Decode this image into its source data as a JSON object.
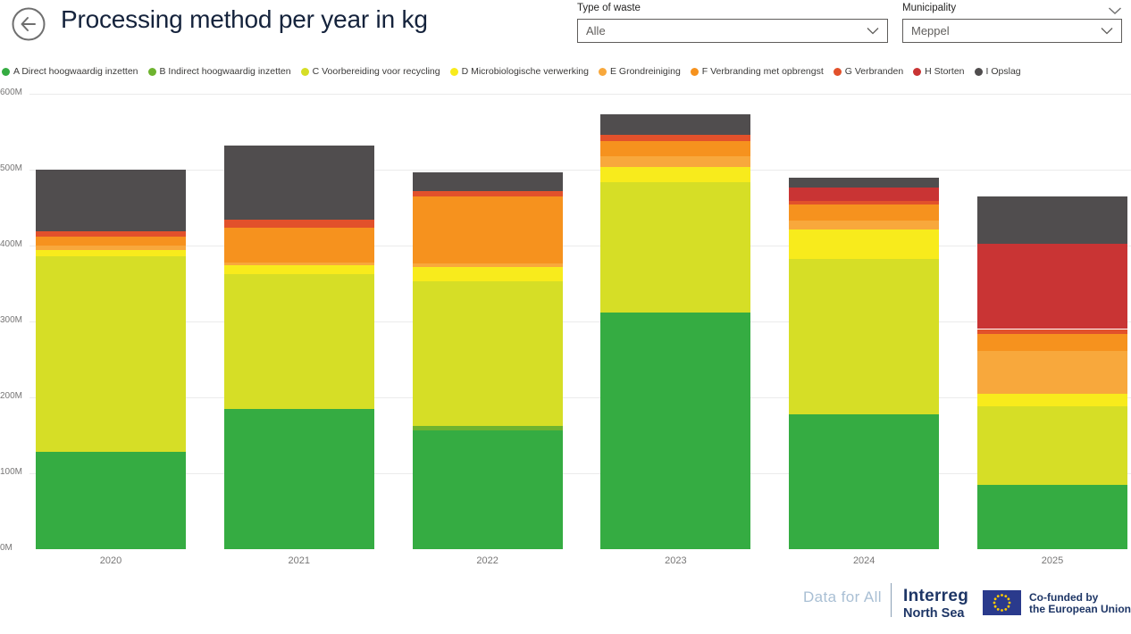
{
  "header": {
    "title": "Processing method per year in kg",
    "filters": {
      "type_of_waste": {
        "label": "Type of waste",
        "value": "Alle"
      },
      "municipality": {
        "label": "Municipality",
        "value": "Meppel"
      }
    }
  },
  "chart_data": {
    "type": "bar",
    "stacked": true,
    "title": "Processing method per year in kg",
    "categories": [
      "2020",
      "2021",
      "2022",
      "2023",
      "2024",
      "2025"
    ],
    "series": [
      {
        "name": "A Direct hoogwaardig inzetten",
        "color": "#35ac42",
        "values": [
          128,
          185,
          157,
          312,
          178,
          85
        ]
      },
      {
        "name": "B Indirect hoogwaardig inzetten",
        "color": "#6eb32f",
        "values": [
          0,
          0,
          5,
          0,
          0,
          0
        ]
      },
      {
        "name": "C Voorbereiding voor recycling",
        "color": "#d6de26",
        "values": [
          258,
          177,
          191,
          172,
          204,
          103
        ]
      },
      {
        "name": "D Microbiologische verwerking",
        "color": "#f8eb1c",
        "values": [
          8,
          12,
          19,
          19,
          39,
          17
        ]
      },
      {
        "name": "E Grondreiniging",
        "color": "#f8a83c",
        "values": [
          6,
          4,
          5,
          15,
          12,
          56
        ]
      },
      {
        "name": "F Verbranding met opbrengst",
        "color": "#f6921e",
        "values": [
          12,
          46,
          88,
          20,
          21,
          23
        ]
      },
      {
        "name": "G Verbranden",
        "color": "#e2512b",
        "values": [
          7,
          10,
          7,
          8,
          5,
          6
        ]
      },
      {
        "name": "H Storten",
        "color": "#c93434",
        "values": [
          0,
          0,
          0,
          0,
          18,
          112
        ]
      },
      {
        "name": "I Opslag",
        "color": "#504d4e",
        "values": [
          81,
          98,
          25,
          27,
          13,
          63
        ]
      }
    ],
    "ylim": [
      0,
      600
    ],
    "y_ticks": [
      "0M",
      "100M",
      "200M",
      "300M",
      "400M",
      "500M",
      "600M"
    ],
    "xlabel": "",
    "ylabel": "",
    "grid": true,
    "legend_position": "top"
  },
  "footer": {
    "brand": "Data for All",
    "interreg_line1": "Interreg",
    "interreg_line2": "North Sea",
    "eu_text_line1": "Co-funded by",
    "eu_text_line2": "the European Union"
  }
}
